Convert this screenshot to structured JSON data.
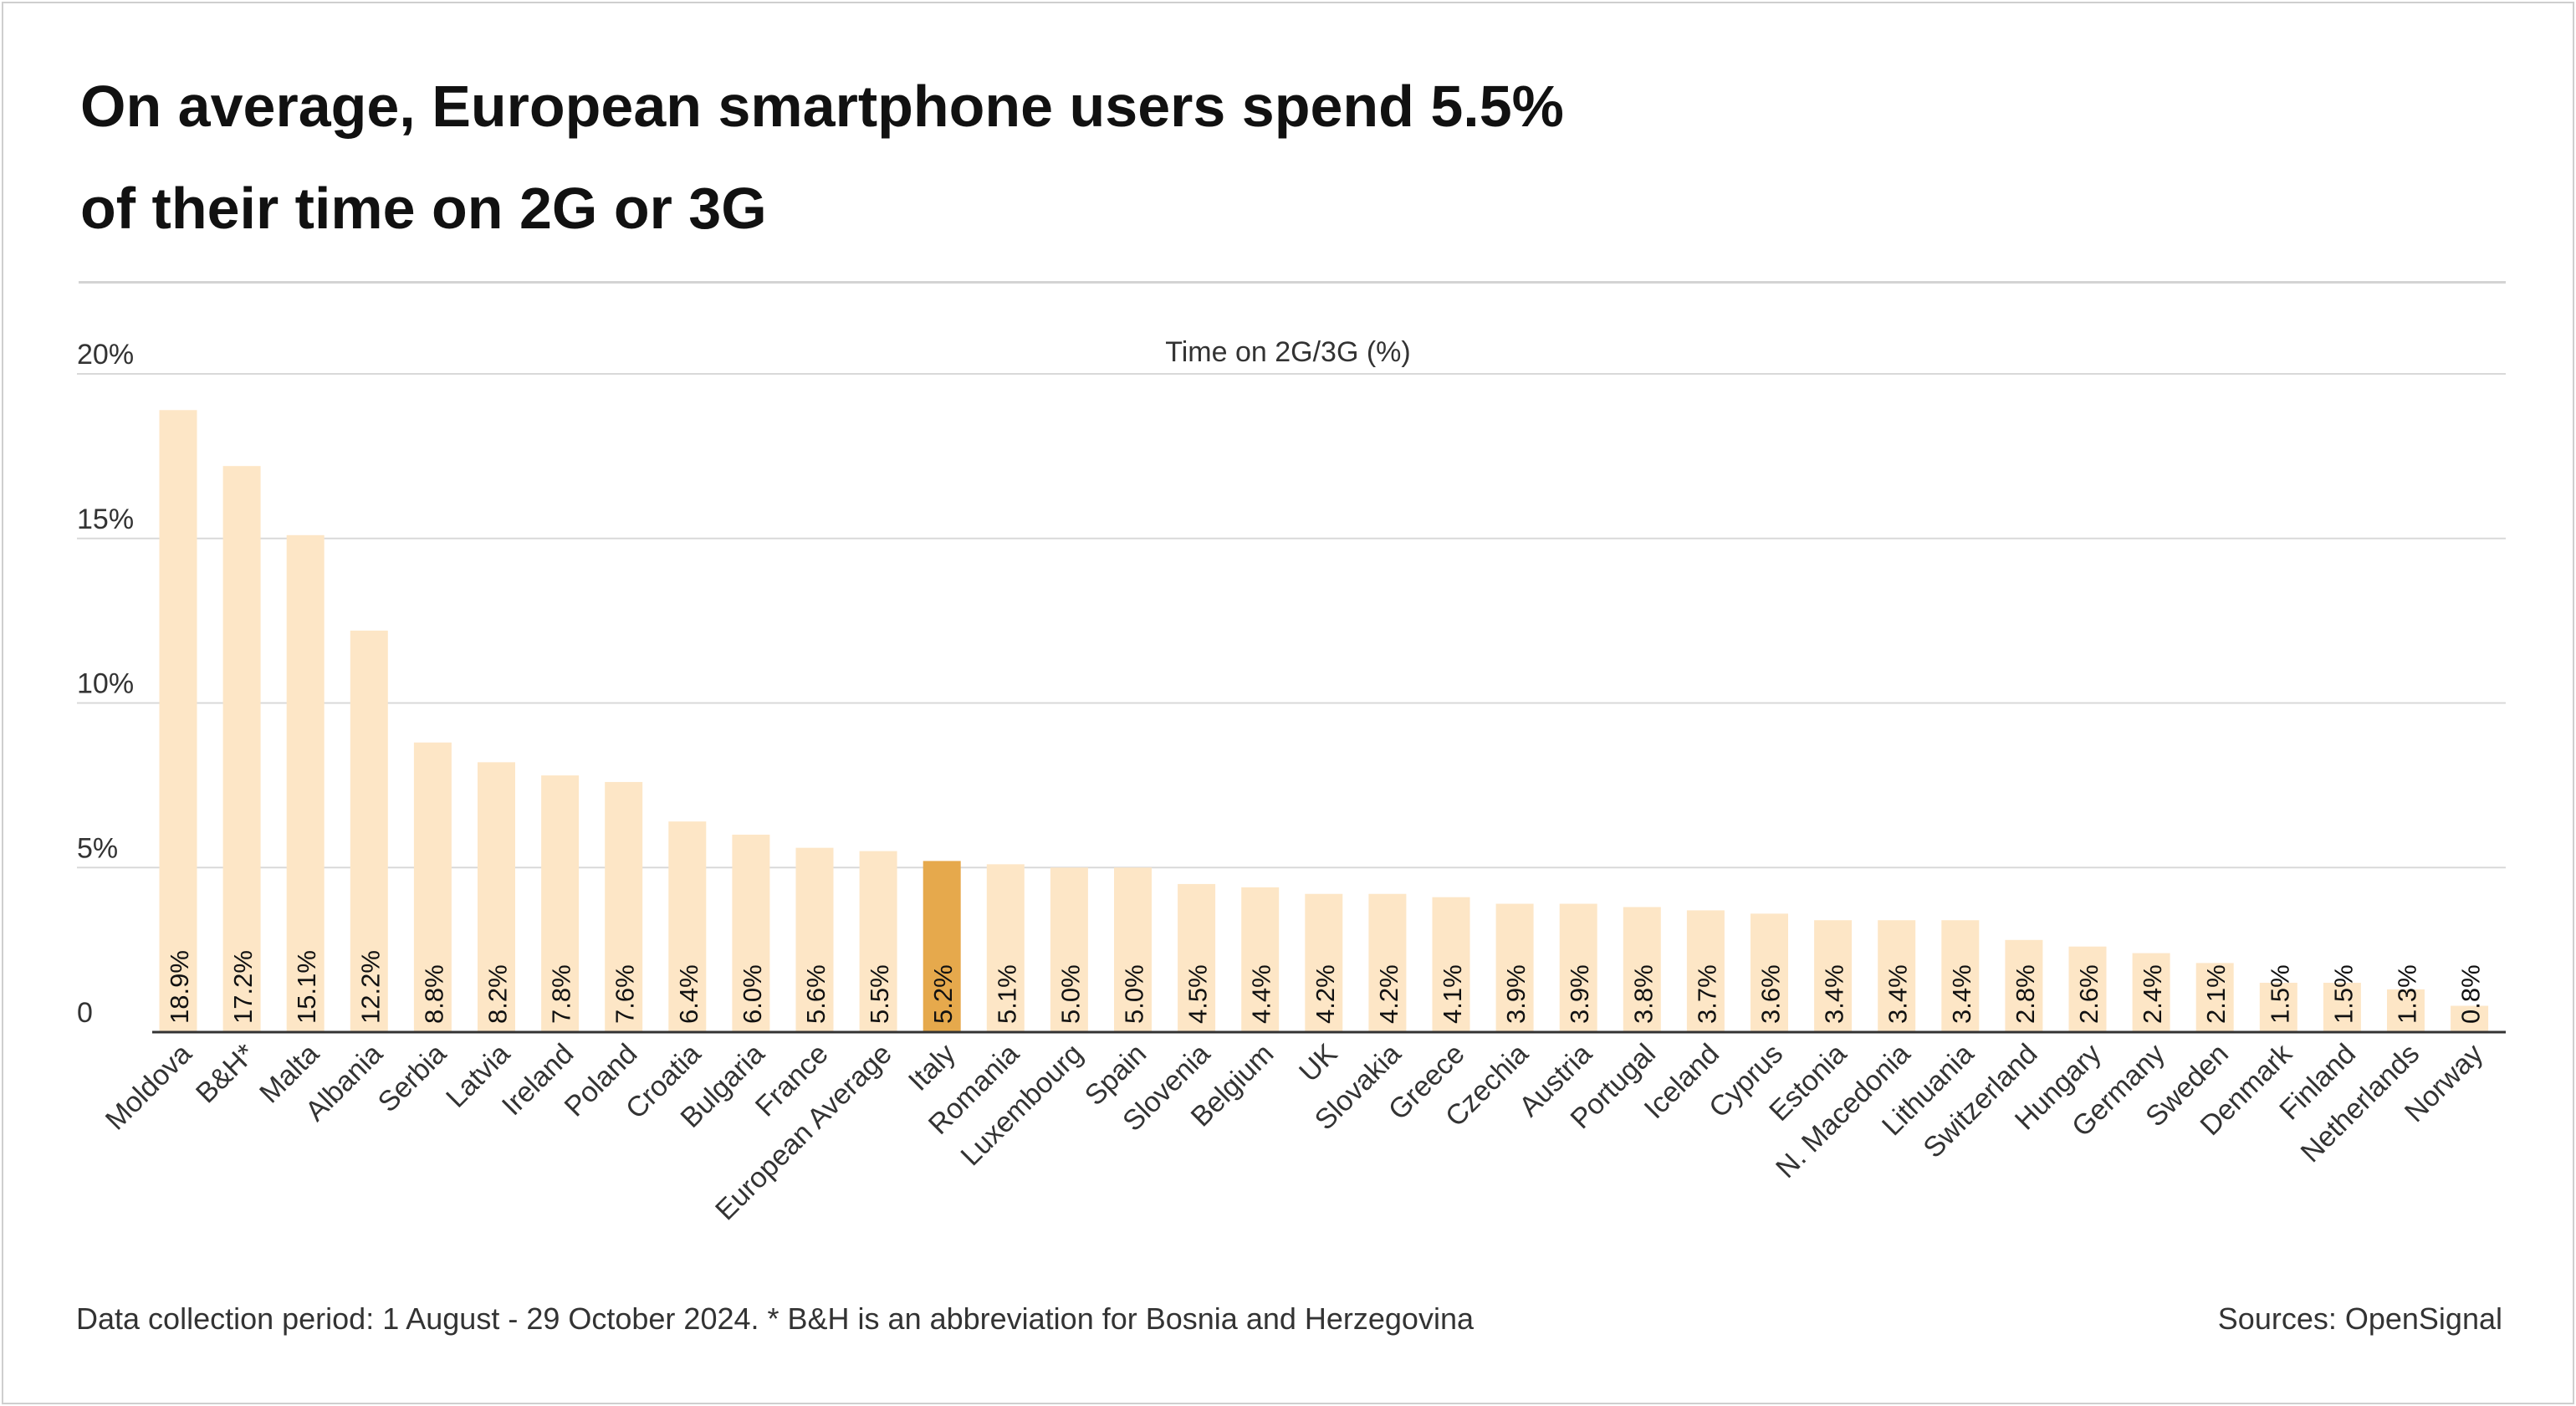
{
  "title_lines": [
    "On average, European smartphone users spend 5.5%",
    "of their time on 2G or 3G"
  ],
  "footnote": "Data collection period: 1 August - 29 October 2024. * B&H is an abbreviation for Bosnia and Herzegovina",
  "source": "Sources: OpenSignal",
  "colors": {
    "bar": "#fde6c6",
    "highlight": "#e6a94c",
    "grid": "#d9d9d9",
    "axis": "#333333",
    "text": "#111111"
  },
  "chart_data": {
    "type": "bar",
    "title": "On average, European smartphone users spend 5.5% of their time on 2G or 3G",
    "ylabel": "Time on 2G/3G (%)",
    "xlabel": "",
    "ylim": [
      0,
      20
    ],
    "yticks": [
      {
        "value": 0,
        "label": "0"
      },
      {
        "value": 5,
        "label": "5%"
      },
      {
        "value": 10,
        "label": "10%"
      },
      {
        "value": 15,
        "label": "15%"
      },
      {
        "value": 20,
        "label": "20%"
      }
    ],
    "grid": true,
    "highlight": "Italy",
    "categories": [
      "Moldova",
      "B&H*",
      "Malta",
      "Albania",
      "Serbia",
      "Latvia",
      "Ireland",
      "Poland",
      "Croatia",
      "Bulgaria",
      "France",
      "European Average",
      "Italy",
      "Romania",
      "Luxembourg",
      "Spain",
      "Slovenia",
      "Belgium",
      "UK",
      "Slovakia",
      "Greece",
      "Czechia",
      "Austria",
      "Portugal",
      "Iceland",
      "Cyprus",
      "Estonia",
      "N. Macedonia",
      "Lithuania",
      "Switzerland",
      "Hungary",
      "Germany",
      "Sweden",
      "Denmark",
      "Finland",
      "Netherlands",
      "Norway"
    ],
    "values": [
      18.9,
      17.2,
      15.1,
      12.2,
      8.8,
      8.2,
      7.8,
      7.6,
      6.4,
      6.0,
      5.6,
      5.5,
      5.2,
      5.1,
      5.0,
      5.0,
      4.5,
      4.4,
      4.2,
      4.2,
      4.1,
      3.9,
      3.9,
      3.8,
      3.7,
      3.6,
      3.4,
      3.4,
      3.4,
      2.8,
      2.6,
      2.4,
      2.1,
      1.5,
      1.5,
      1.3,
      0.8
    ],
    "value_labels": [
      "18.9%",
      "17.2%",
      "15.1%",
      "12.2%",
      "8.8%",
      "8.2%",
      "7.8%",
      "7.6%",
      "6.4%",
      "6.0%",
      "5.6%",
      "5.5%",
      "5.2%",
      "5.1%",
      "5.0%",
      "5.0%",
      "4.5%",
      "4.4%",
      "4.2%",
      "4.2%",
      "4.1%",
      "3.9%",
      "3.9%",
      "3.8%",
      "3.7%",
      "3.6%",
      "3.4%",
      "3.4%",
      "3.4%",
      "2.8%",
      "2.6%",
      "2.4%",
      "2.1%",
      "1.5%",
      "1.5%",
      "1.3%",
      "0.8%"
    ]
  }
}
